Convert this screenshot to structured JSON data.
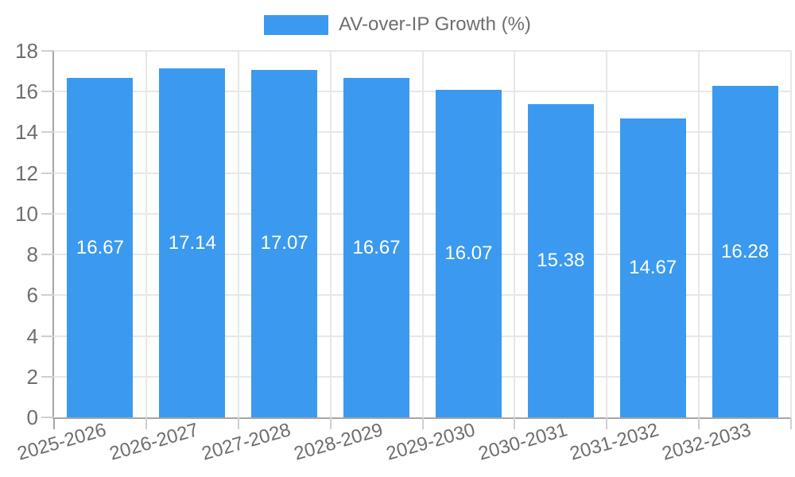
{
  "chart": {
    "legend": {
      "label": "AV-over-IP Growth (%)"
    },
    "colors": {
      "bar": "#3b9aef",
      "axis": "#a6a6a6",
      "grid": "#e7e7e7",
      "tick": "#cfcfcf",
      "text": "#6e6e6e",
      "value_label": "#ffffff",
      "background": "#ffffff"
    }
  },
  "chart_data": {
    "type": "bar",
    "title": "",
    "xlabel": "",
    "ylabel": "",
    "categories": [
      "2025-2026",
      "2026-2027",
      "2027-2028",
      "2028-2029",
      "2029-2030",
      "2030-2031",
      "2031-2032",
      "2032-2033"
    ],
    "series": [
      {
        "name": "AV-over-IP Growth (%)",
        "values": [
          16.67,
          17.14,
          17.07,
          16.67,
          16.07,
          15.38,
          14.67,
          16.28
        ]
      }
    ],
    "value_labels": [
      "16.67",
      "17.14",
      "17.07",
      "16.67",
      "16.07",
      "15.38",
      "14.67",
      "16.28"
    ],
    "ylim": [
      0,
      18
    ],
    "yticks": [
      0,
      2,
      4,
      6,
      8,
      10,
      12,
      14,
      16,
      18
    ],
    "grid": true,
    "legend_position": "top-center",
    "bar_label_position": "center"
  }
}
